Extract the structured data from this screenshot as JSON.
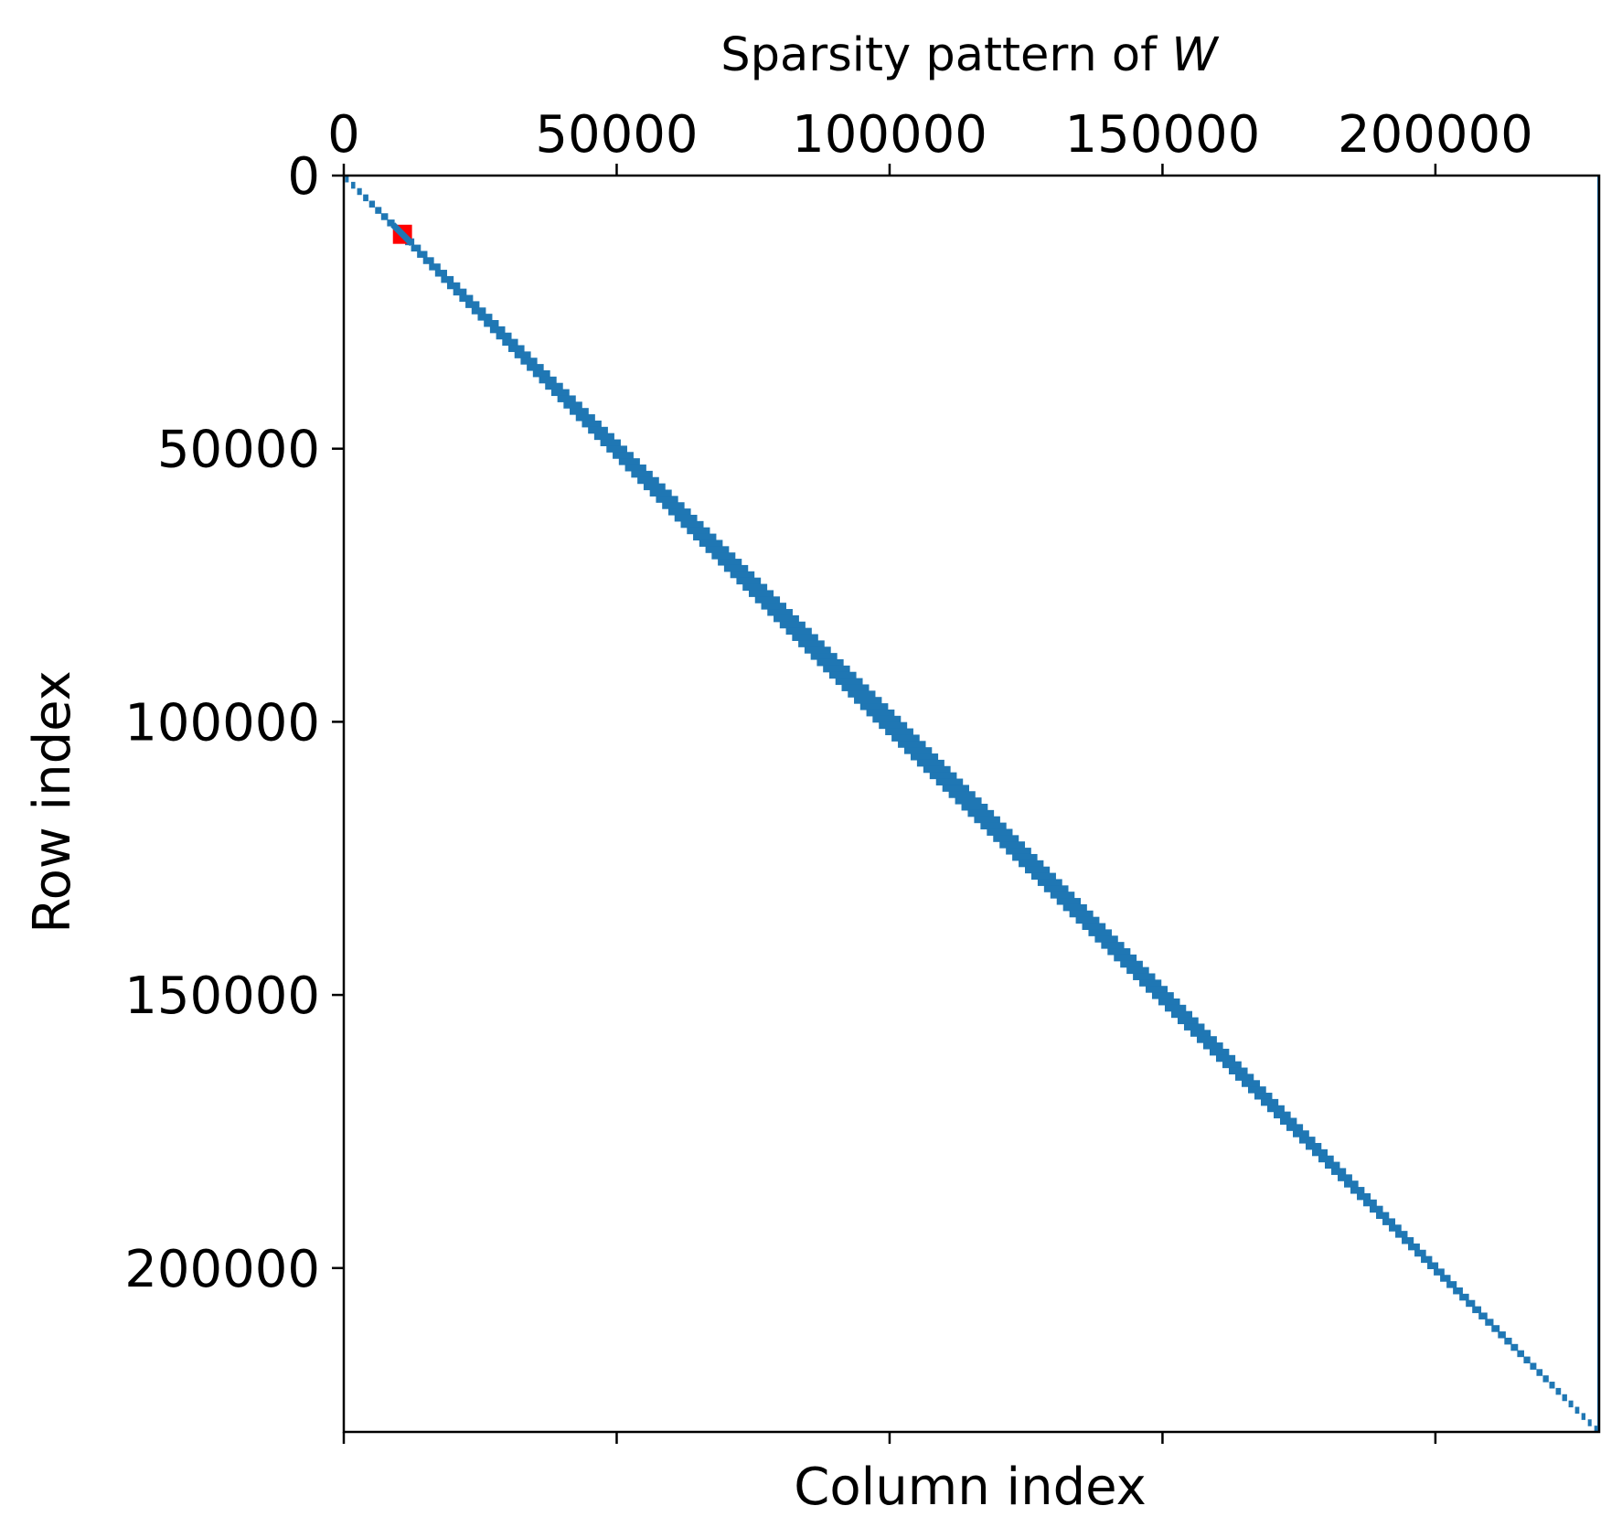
{
  "chart_data": {
    "type": "heatmap",
    "subtype": "sparsity-pattern",
    "title": "Sparsity pattern of ",
    "title_var": "W",
    "xlabel": "Column index",
    "ylabel": "Row index",
    "n": 230000,
    "xlim": [
      0,
      230000
    ],
    "ylim": [
      230000,
      0
    ],
    "x_ticks": [
      0,
      50000,
      100000,
      150000,
      200000
    ],
    "x_tick_labels": [
      "0",
      "50000",
      "100000",
      "150000",
      "200000"
    ],
    "y_ticks": [
      0,
      50000,
      100000,
      150000,
      200000
    ],
    "y_tick_labels": [
      "0",
      "50000",
      "100000",
      "150000",
      "200000"
    ],
    "x_ticks_position": "top",
    "grid": false,
    "nonzero_color": "#1f77b4",
    "band_halfwidth_profile": [
      {
        "row": 0,
        "halfwidth": 300
      },
      {
        "row": 20000,
        "halfwidth": 1200
      },
      {
        "row": 50000,
        "halfwidth": 1900
      },
      {
        "row": 100000,
        "halfwidth": 2600
      },
      {
        "row": 150000,
        "halfwidth": 2000
      },
      {
        "row": 200000,
        "halfwidth": 1000
      },
      {
        "row": 230000,
        "halfwidth": 300
      }
    ],
    "highlight": {
      "color": "#ff0000",
      "row_range": [
        9000,
        12500
      ],
      "col_range": [
        9000,
        12500
      ]
    }
  }
}
